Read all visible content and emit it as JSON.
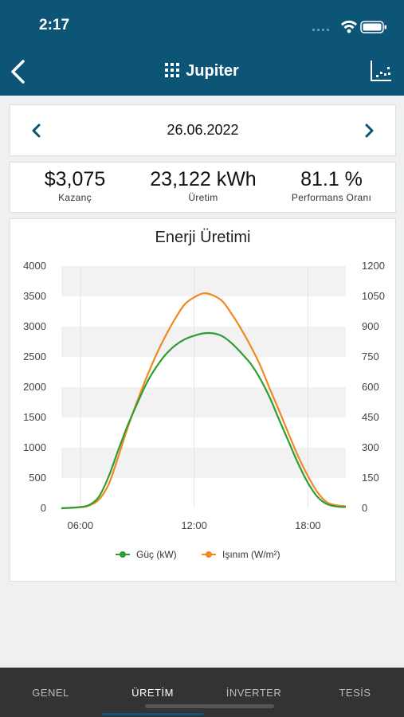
{
  "status": {
    "time": "2:17"
  },
  "header": {
    "title": "Jupiter"
  },
  "date_nav": {
    "date": "26.06.2022"
  },
  "kpis": [
    {
      "value": "$3,075",
      "label": "Kazanç"
    },
    {
      "value": "23,122 kWh",
      "label": "Üretim"
    },
    {
      "value": "81.1 %",
      "label": "Performans Oranı"
    }
  ],
  "chart_data": {
    "type": "line",
    "title": "Enerji Üretimi",
    "x_tick_labels": [
      "06:00",
      "12:00",
      "18:00"
    ],
    "xlim_hours": [
      5.0,
      20.0
    ],
    "y_left": {
      "ylim": [
        0,
        4000
      ],
      "ticks": [
        "0",
        "500",
        "1000",
        "1500",
        "2000",
        "2500",
        "3000",
        "3500",
        "4000"
      ]
    },
    "y_right": {
      "ylim": [
        0,
        1200
      ],
      "ticks": [
        "0",
        "150",
        "300",
        "450",
        "600",
        "750",
        "900",
        "1050",
        "1200"
      ]
    },
    "grid": "horizontal bands",
    "legend_position": "bottom-center",
    "series": [
      {
        "name": "Güç (kW)",
        "axis": "left",
        "color": "#2e9e34",
        "x": [
          5.0,
          6.0,
          6.5,
          7.0,
          7.5,
          8.0,
          8.5,
          9.0,
          9.5,
          10.0,
          10.5,
          11.0,
          11.5,
          12.0,
          12.5,
          13.0,
          13.5,
          14.0,
          14.5,
          15.0,
          15.5,
          16.0,
          16.5,
          17.0,
          17.5,
          18.0,
          18.5,
          19.0,
          19.5,
          20.0
        ],
        "y": [
          0,
          20,
          60,
          200,
          530,
          960,
          1370,
          1730,
          2070,
          2330,
          2540,
          2690,
          2790,
          2850,
          2890,
          2890,
          2840,
          2720,
          2560,
          2380,
          2130,
          1820,
          1450,
          1090,
          730,
          420,
          190,
          70,
          30,
          20
        ]
      },
      {
        "name": "Işınım (W/m²)",
        "axis": "right",
        "color": "#f0891f",
        "x": [
          5.0,
          6.0,
          6.5,
          7.0,
          7.5,
          8.0,
          8.5,
          9.0,
          9.5,
          10.0,
          10.5,
          11.0,
          11.5,
          12.0,
          12.5,
          13.0,
          13.5,
          14.0,
          14.5,
          15.0,
          15.5,
          16.0,
          16.5,
          17.0,
          17.5,
          18.0,
          18.5,
          19.0,
          19.5,
          20.0
        ],
        "y": [
          0,
          5,
          15,
          45,
          120,
          255,
          400,
          530,
          650,
          760,
          855,
          940,
          1010,
          1045,
          1065,
          1055,
          1025,
          960,
          885,
          800,
          705,
          590,
          480,
          365,
          255,
          160,
          80,
          30,
          15,
          10
        ]
      }
    ]
  },
  "tabs": [
    {
      "label": "GENEL"
    },
    {
      "label": "ÜRETİM"
    },
    {
      "label": "İNVERTER"
    },
    {
      "label": "TESİS"
    }
  ],
  "colors": {
    "header": "#0d5577",
    "accent": "#0d5577",
    "tabbar": "#333333"
  }
}
